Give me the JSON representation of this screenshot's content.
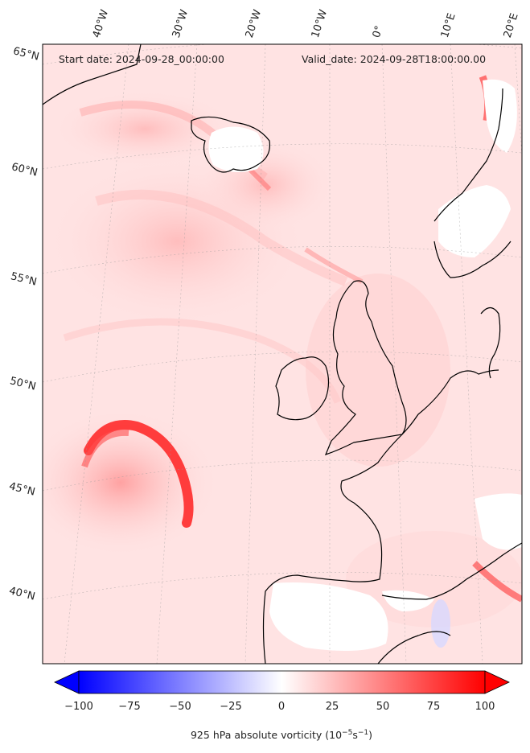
{
  "header": {
    "start_date": "Start date: 2024-09-28_00:00:00",
    "valid_date": "Valid_date: 2024-09-28T18:00:00.00"
  },
  "lat_labels": [
    "65°N",
    "60°N",
    "55°N",
    "50°N",
    "45°N",
    "40°N"
  ],
  "lon_labels": [
    "40°W",
    "30°W",
    "20°W",
    "10°W",
    "0°",
    "10°E",
    "20°E"
  ],
  "colorbar": {
    "min": -100,
    "max": 100,
    "ticks": [
      "−100",
      "−75",
      "−50",
      "−25",
      "0",
      "25",
      "50",
      "75",
      "100"
    ],
    "label_main": "925 hPa absolute vorticity (10",
    "label_exp1": "−5",
    "label_mid": "s",
    "label_exp2": "−1",
    "label_end": ")",
    "colors": {
      "low": "#0000ff",
      "mid": "#ffffff",
      "high": "#ff0000"
    }
  },
  "map_colors": {
    "background": "#ffe6e6",
    "land_outline": "#000000",
    "vortex": "#ff3030"
  }
}
